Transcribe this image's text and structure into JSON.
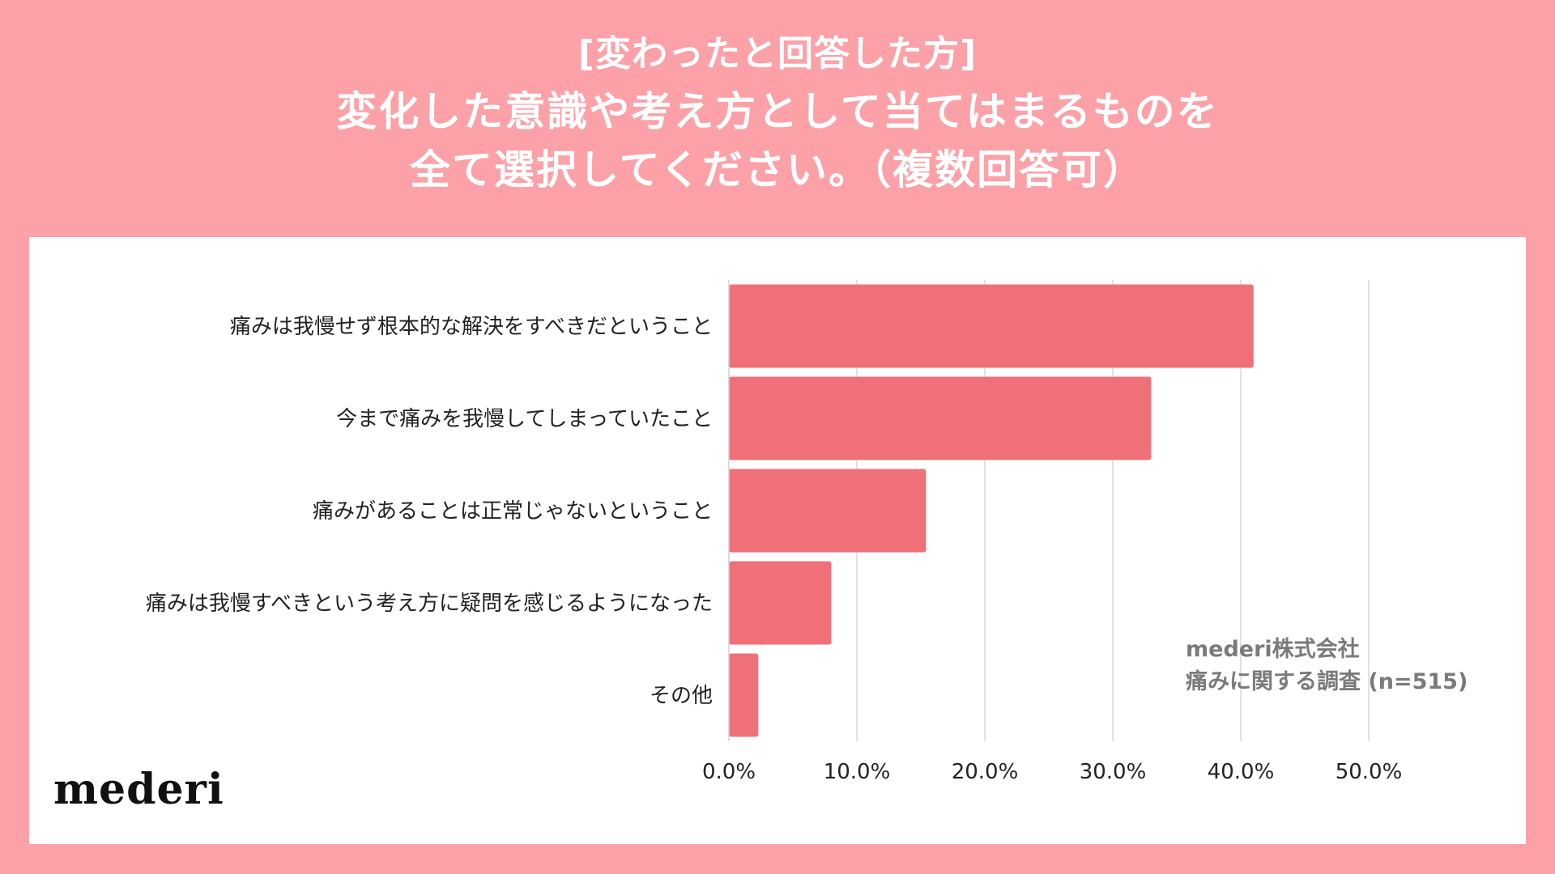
{
  "header": {
    "subtitle": "[変わったと回答した方]",
    "title_line1": "変化した意識や考え方として当てはまるものを",
    "title_line2": "全て選択してください。（複数回答可）"
  },
  "note": {
    "company": "mederi株式会社",
    "survey": "痛みに関する調査 (n=515)"
  },
  "logo": "mederi",
  "colors": {
    "background": "#fca1a8",
    "bar": "#f0707a",
    "card": "#ffffff"
  },
  "chart_data": {
    "type": "bar",
    "orientation": "horizontal",
    "categories": [
      "痛みは我慢せず根本的な解決をすべきだということ",
      "今まで痛みを我慢してしまっていたこと",
      "痛みがあることは正常じゃないということ",
      "痛みは我慢すべきという考え方に疑問を感じるようになった",
      "その他"
    ],
    "values": [
      41.0,
      33.0,
      15.4,
      8.0,
      2.3
    ],
    "xlim": [
      0,
      50
    ],
    "xticks": [
      "0.0%",
      "10.0%",
      "20.0%",
      "30.0%",
      "40.0%",
      "50.0%"
    ],
    "grid": true,
    "unit": "%"
  }
}
